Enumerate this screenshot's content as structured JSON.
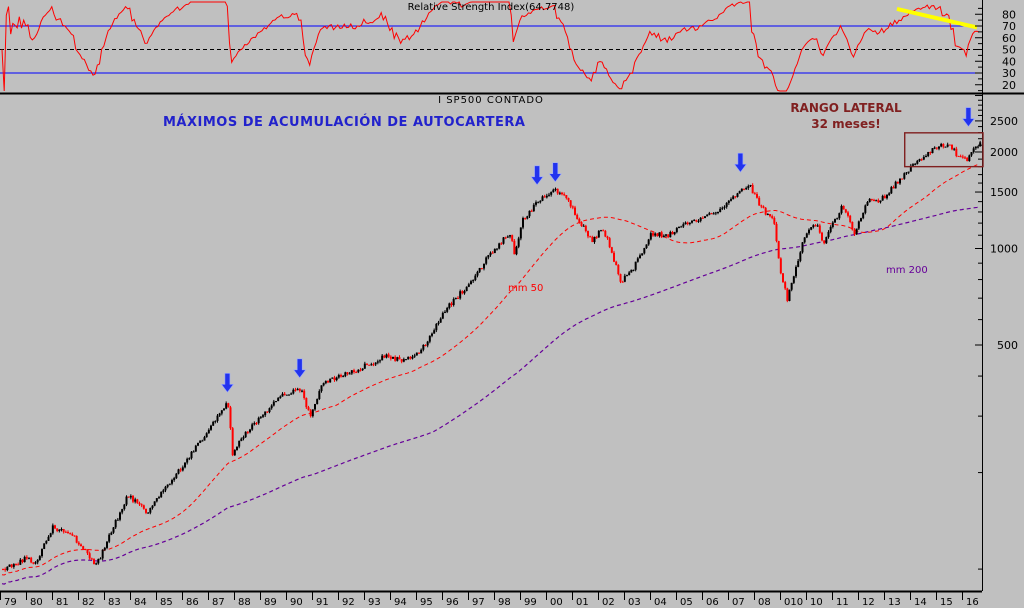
{
  "colors": {
    "background": "#c0c0c0",
    "rsi_line": "#ff0000",
    "rsi_band_line": "#0000ff",
    "rsi_mid_line": "#000000",
    "trendline_yellow": "#ffff00",
    "candle_up": "#000000",
    "candle_down": "#ff0000",
    "mm50": "#ff0000",
    "mm200": "#660099",
    "annotation_blue": "#2222cc",
    "annotation_maroon": "#802020",
    "arrow_blue": "#2233ee",
    "axis_black": "#000000"
  },
  "rsi_panel": {
    "title": "Relative Strength Index(64.7748)",
    "current_value": 64.7748,
    "upper_band": 70,
    "mid_line": 50,
    "lower_band": 30,
    "axis_labels": [
      "80",
      "70",
      "60",
      "50",
      "40",
      "30",
      "20"
    ]
  },
  "main_panel": {
    "instrument_label": "I SP500 CONTADO",
    "annotation": "MÁXIMOS DE ACUMULACIÓN DE AUTOCARTERA",
    "range_annotation_line1": "RANGO LATERAL",
    "range_annotation_line2": "32 meses!",
    "mm50_label": "mm 50",
    "mm200_label": "mm 200",
    "price_axis_labels": [
      "2500",
      "2000",
      "1500",
      "1000",
      "500"
    ]
  },
  "x_axis": {
    "labels": [
      "79",
      "80",
      "81",
      "82",
      "83",
      "84",
      "85",
      "86",
      "87",
      "88",
      "89",
      "90",
      "91",
      "92",
      "93",
      "94",
      "95",
      "96",
      "97",
      "98",
      "99",
      "00",
      "01",
      "02",
      "03",
      "04",
      "05",
      "06",
      "07",
      "08",
      "010",
      "10",
      "11",
      "12",
      "13",
      "14",
      "15",
      "16"
    ]
  },
  "chart_data": {
    "type": "candlestick",
    "title": "I SP500 CONTADO",
    "x_unit": "year",
    "x_range": [
      1979,
      2016.6
    ],
    "y_scale": "log",
    "y_range_visible": [
      86,
      3030
    ],
    "price_axis_ticks_major": [
      500,
      1000,
      1500,
      2000,
      2500
    ],
    "rsi_axis_ticks_major": [
      20,
      30,
      40,
      50,
      60,
      70,
      80
    ],
    "series_anchors": [
      [
        1979.0,
        100
      ],
      [
        1979.5,
        103
      ],
      [
        1980.0,
        110
      ],
      [
        1980.2,
        102
      ],
      [
        1980.9,
        135
      ],
      [
        1981.6,
        130
      ],
      [
        1982.6,
        103
      ],
      [
        1983.8,
        170
      ],
      [
        1984.55,
        150
      ],
      [
        1985.5,
        190
      ],
      [
        1986.6,
        250
      ],
      [
        1987.66,
        330
      ],
      [
        1987.83,
        230
      ],
      [
        1988.3,
        262
      ],
      [
        1989.7,
        350
      ],
      [
        1990.45,
        365
      ],
      [
        1990.8,
        300
      ],
      [
        1991.3,
        380
      ],
      [
        1992.5,
        415
      ],
      [
        1993.8,
        465
      ],
      [
        1994.3,
        445
      ],
      [
        1995.0,
        470
      ],
      [
        1996.0,
        640
      ],
      [
        1997.0,
        790
      ],
      [
        1997.7,
        950
      ],
      [
        1998.5,
        1120
      ],
      [
        1998.67,
        970
      ],
      [
        1999.0,
        1230
      ],
      [
        1999.55,
        1400
      ],
      [
        2000.2,
        1530
      ],
      [
        2000.65,
        1450
      ],
      [
        2001.1,
        1240
      ],
      [
        2001.7,
        1050
      ],
      [
        2001.95,
        1150
      ],
      [
        2002.2,
        1100
      ],
      [
        2002.75,
        790
      ],
      [
        2003.2,
        855
      ],
      [
        2003.95,
        1110
      ],
      [
        2004.6,
        1100
      ],
      [
        2005.5,
        1220
      ],
      [
        2006.5,
        1300
      ],
      [
        2007.4,
        1530
      ],
      [
        2007.75,
        1550
      ],
      [
        2008.2,
        1330
      ],
      [
        2008.65,
        1220
      ],
      [
        2008.85,
        900
      ],
      [
        2009.17,
        690
      ],
      [
        2009.8,
        1090
      ],
      [
        2010.3,
        1200
      ],
      [
        2010.55,
        1040
      ],
      [
        2011.3,
        1360
      ],
      [
        2011.75,
        1120
      ],
      [
        2012.25,
        1410
      ],
      [
        2012.75,
        1410
      ],
      [
        2013.5,
        1650
      ],
      [
        2014.2,
        1880
      ],
      [
        2014.95,
        2080
      ],
      [
        2015.4,
        2110
      ],
      [
        2015.75,
        1930
      ],
      [
        2016.1,
        1890
      ],
      [
        2016.35,
        2075
      ],
      [
        2016.55,
        2120
      ]
    ],
    "moving_averages": [
      {
        "name": "mm 50",
        "period": 50,
        "style": "dashed"
      },
      {
        "name": "mm 200",
        "period": 200,
        "style": "dashed"
      }
    ],
    "rsi": {
      "period": 14,
      "current": 64.7748,
      "upper": 70,
      "mid": 50,
      "lower": 30
    },
    "arrows_down": [
      {
        "year": 1987.67,
        "tip_price": 356
      },
      {
        "year": 1990.45,
        "tip_price": 395
      },
      {
        "year": 1999.58,
        "tip_price": 1580
      },
      {
        "year": 2000.28,
        "tip_price": 1615
      },
      {
        "year": 2007.4,
        "tip_price": 1730
      },
      {
        "year": 2016.17,
        "tip_price": 2400
      }
    ],
    "lateral_range_box": {
      "year_start": 2013.72,
      "year_end": 2016.73,
      "price_top": 2295,
      "price_bottom": 1800,
      "label": "RANGO LATERAL 32 meses!"
    },
    "rsi_trendline": {
      "year_start": 2013.42,
      "value_start": 84.5,
      "year_end": 2016.5,
      "value_end": 68.8
    }
  }
}
